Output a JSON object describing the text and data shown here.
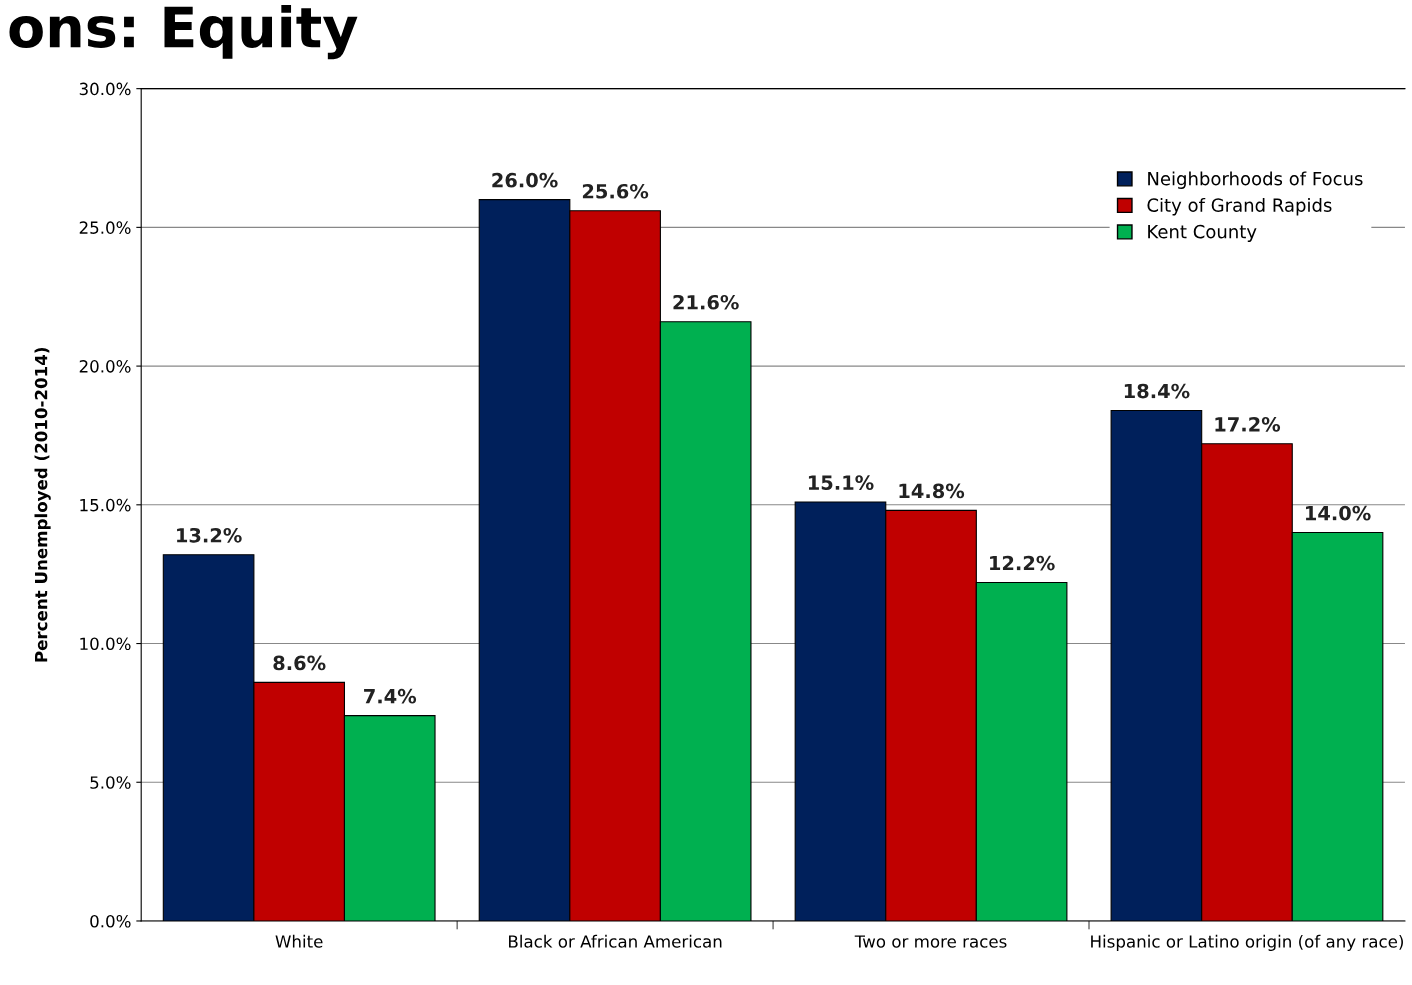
{
  "chart_data": {
    "type": "bar",
    "title": "ons: Equity",
    "ylabel": "Percent Unemployed (2010-2014)",
    "categories": [
      "White",
      "Black or African American",
      "Two or more races",
      "Hispanic or Latino origin (of any race)"
    ],
    "series": [
      {
        "name": "Neighborhoods of Focus",
        "color": "#00205b",
        "values": [
          13.2,
          26.0,
          15.1,
          18.4
        ],
        "value_labels": [
          "13.2%",
          "26.0%",
          "15.1%",
          "18.4%"
        ]
      },
      {
        "name": "City of Grand Rapids",
        "color": "#c00000",
        "values": [
          8.6,
          25.6,
          14.8,
          17.2
        ],
        "value_labels": [
          "8.6%",
          "25.6%",
          "14.8%",
          "17.2%"
        ]
      },
      {
        "name": "Kent County",
        "color": "#00b050",
        "values": [
          7.4,
          21.6,
          12.2,
          14.0
        ],
        "value_labels": [
          "7.4%",
          "21.6%",
          "12.2%",
          "14.0%"
        ]
      }
    ],
    "ylim": [
      0,
      30
    ],
    "yticks": [
      {
        "value": 0,
        "label": "0.0%"
      },
      {
        "value": 5,
        "label": "5.0%"
      },
      {
        "value": 10,
        "label": "10.0%"
      },
      {
        "value": 15,
        "label": "15.0%"
      },
      {
        "value": 20,
        "label": "20.0%"
      },
      {
        "value": 25,
        "label": "25.0%"
      },
      {
        "value": 30,
        "label": "30.0%"
      }
    ],
    "grid": "y",
    "legend": "top right"
  }
}
